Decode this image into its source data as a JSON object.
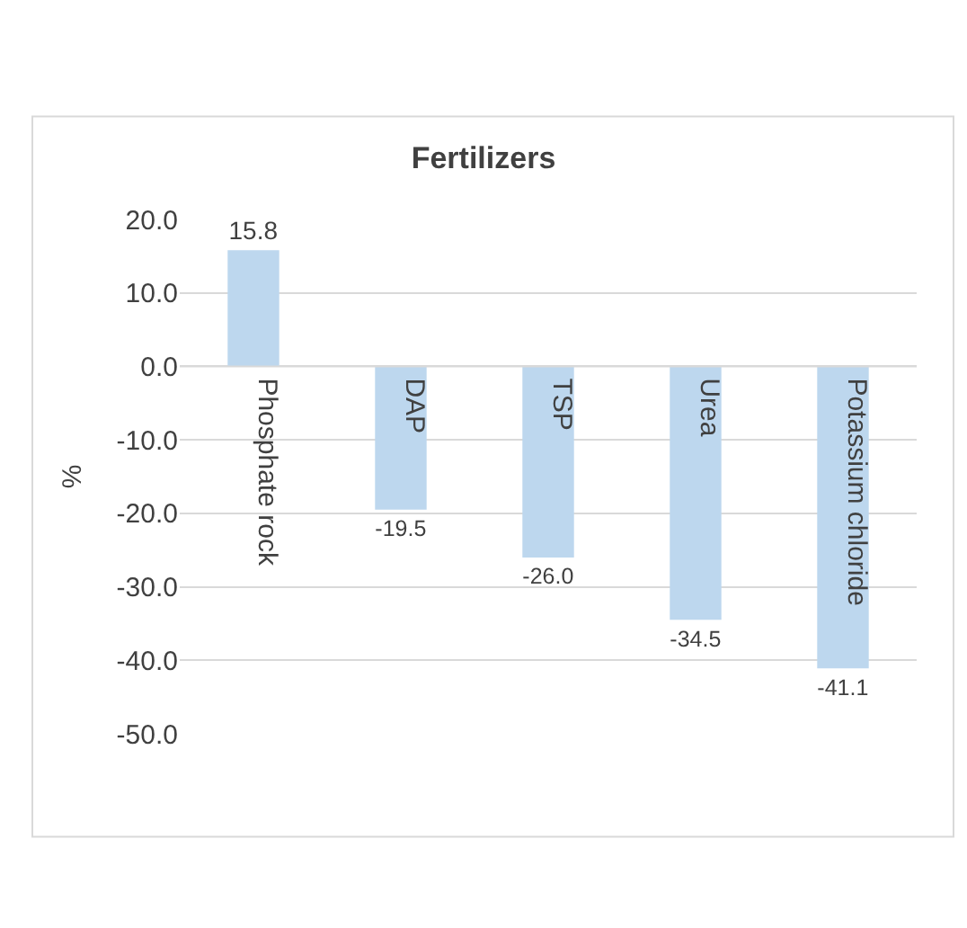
{
  "chart_data": {
    "type": "bar",
    "title": "Fertilizers",
    "ylabel": "%",
    "categories": [
      "Phosphate rock",
      "DAP",
      "TSP",
      "Urea",
      "Potassium chloride"
    ],
    "values": [
      15.8,
      -19.5,
      -26.0,
      -34.5,
      -41.1
    ],
    "color": "#bdd7ee",
    "data_labels": true,
    "value_labels": [
      "15.8",
      "-19.5",
      "-26.0",
      "-34.5",
      "-41.1"
    ],
    "ylim": [
      -50,
      20
    ],
    "yticks": [
      {
        "value": 20,
        "label": "20.0"
      },
      {
        "value": 10,
        "label": "10.0"
      },
      {
        "value": 0,
        "label": "0.0"
      },
      {
        "value": -10,
        "label": "-10.0"
      },
      {
        "value": -20,
        "label": "-20.0"
      },
      {
        "value": -30,
        "label": "-30.0"
      },
      {
        "value": -40,
        "label": "-40.0"
      },
      {
        "value": -50,
        "label": "-50.0"
      }
    ],
    "grid": "y",
    "legend": false
  }
}
